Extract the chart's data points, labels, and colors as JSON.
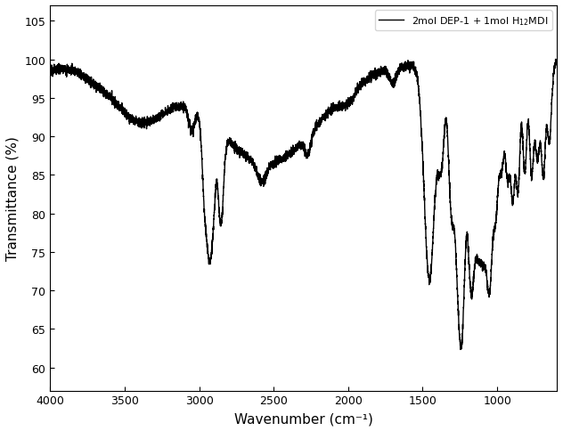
{
  "title": "",
  "xlabel": "Wavenumber (cm⁻¹)",
  "ylabel": "Transmittance (%)",
  "legend_label": "2mol DEP-1 + 1mol H₁₂MDI",
  "xlim": [
    4000,
    600
  ],
  "ylim": [
    57,
    107
  ],
  "yticks": [
    60,
    65,
    70,
    75,
    80,
    85,
    90,
    95,
    100,
    105
  ],
  "xticks": [
    4000,
    3500,
    3000,
    2500,
    2000,
    1500,
    1000
  ],
  "line_color": "#000000",
  "background_color": "#ffffff",
  "linewidth": 1.0
}
